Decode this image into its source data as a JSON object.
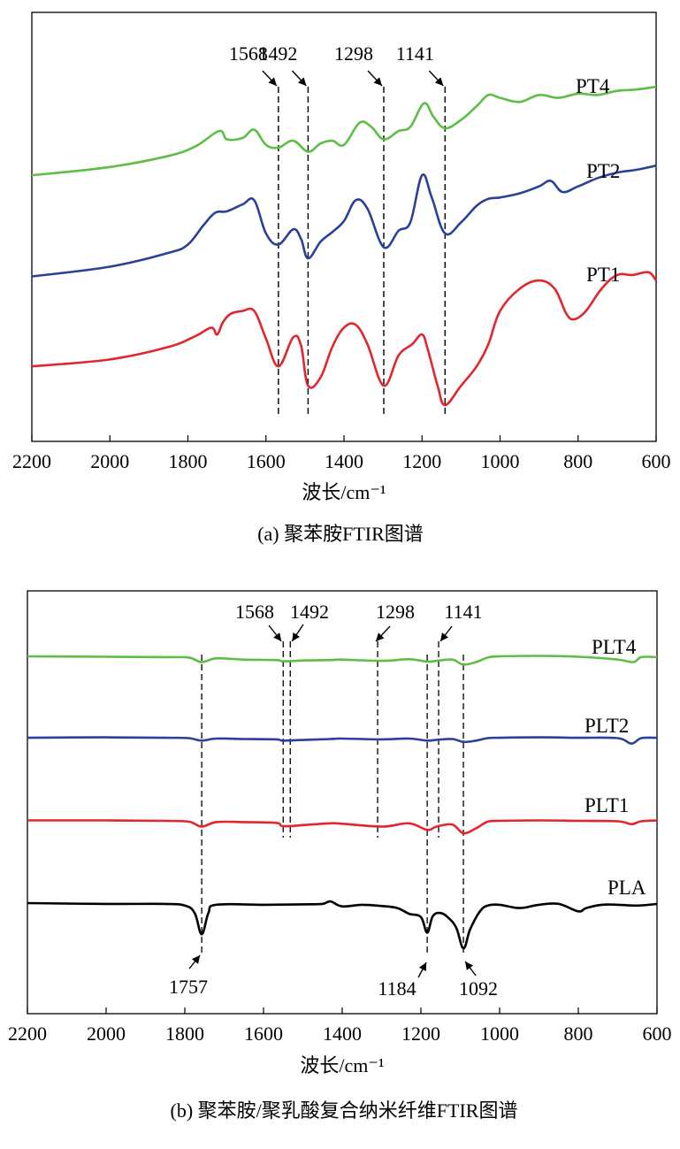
{
  "chart_data": [
    {
      "type": "line",
      "caption": "(a) 聚苯胺FTIR图谱",
      "xlabel": "波长/cm⁻¹",
      "ylabel": "",
      "xlim": [
        2200,
        600
      ],
      "x_reversed": true,
      "y_ticks": false,
      "x_ticks": [
        2200,
        2000,
        1800,
        1600,
        1400,
        1200,
        1000,
        800,
        600
      ],
      "peak_markers": [
        1568,
        1492,
        1298,
        1141
      ],
      "series": [
        {
          "name": "PT4",
          "color": "#5cbf45",
          "points": [
            [
              2200,
              0.83
            ],
            [
              2000,
              0.86
            ],
            [
              1850,
              0.9
            ],
            [
              1780,
              0.935
            ],
            [
              1720,
              0.99
            ],
            [
              1700,
              0.96
            ],
            [
              1660,
              0.965
            ],
            [
              1630,
              0.995
            ],
            [
              1600,
              0.94
            ],
            [
              1568,
              0.93
            ],
            [
              1530,
              0.955
            ],
            [
              1492,
              0.915
            ],
            [
              1460,
              0.945
            ],
            [
              1430,
              0.955
            ],
            [
              1400,
              0.94
            ],
            [
              1360,
              1.02
            ],
            [
              1330,
              1.005
            ],
            [
              1298,
              0.96
            ],
            [
              1260,
              0.99
            ],
            [
              1230,
              1.005
            ],
            [
              1195,
              1.09
            ],
            [
              1170,
              1.04
            ],
            [
              1141,
              1.0
            ],
            [
              1100,
              1.03
            ],
            [
              1060,
              1.08
            ],
            [
              1030,
              1.12
            ],
            [
              1000,
              1.11
            ],
            [
              950,
              1.095
            ],
            [
              900,
              1.12
            ],
            [
              850,
              1.11
            ],
            [
              800,
              1.125
            ],
            [
              750,
              1.12
            ],
            [
              700,
              1.135
            ],
            [
              650,
              1.14
            ],
            [
              600,
              1.15
            ]
          ]
        },
        {
          "name": "PT2",
          "color": "#2b409a",
          "points": [
            [
              2200,
              0.465
            ],
            [
              2000,
              0.5
            ],
            [
              1850,
              0.55
            ],
            [
              1800,
              0.58
            ],
            [
              1760,
              0.65
            ],
            [
              1730,
              0.695
            ],
            [
              1700,
              0.7
            ],
            [
              1660,
              0.725
            ],
            [
              1630,
              0.74
            ],
            [
              1600,
              0.62
            ],
            [
              1568,
              0.58
            ],
            [
              1530,
              0.635
            ],
            [
              1510,
              0.6
            ],
            [
              1492,
              0.53
            ],
            [
              1460,
              0.59
            ],
            [
              1430,
              0.625
            ],
            [
              1400,
              0.665
            ],
            [
              1370,
              0.74
            ],
            [
              1340,
              0.71
            ],
            [
              1298,
              0.57
            ],
            [
              1260,
              0.63
            ],
            [
              1230,
              0.66
            ],
            [
              1200,
              0.83
            ],
            [
              1175,
              0.75
            ],
            [
              1141,
              0.62
            ],
            [
              1100,
              0.66
            ],
            [
              1060,
              0.72
            ],
            [
              1030,
              0.745
            ],
            [
              1000,
              0.75
            ],
            [
              950,
              0.765
            ],
            [
              900,
              0.79
            ],
            [
              870,
              0.81
            ],
            [
              840,
              0.77
            ],
            [
              800,
              0.79
            ],
            [
              750,
              0.82
            ],
            [
              700,
              0.84
            ],
            [
              650,
              0.85
            ],
            [
              600,
              0.865
            ]
          ]
        },
        {
          "name": "PT1",
          "color": "#e1262c",
          "points": [
            [
              2200,
              0.14
            ],
            [
              2000,
              0.165
            ],
            [
              1850,
              0.21
            ],
            [
              1780,
              0.25
            ],
            [
              1740,
              0.28
            ],
            [
              1725,
              0.255
            ],
            [
              1710,
              0.3
            ],
            [
              1690,
              0.33
            ],
            [
              1660,
              0.34
            ],
            [
              1630,
              0.34
            ],
            [
              1600,
              0.24
            ],
            [
              1568,
              0.14
            ],
            [
              1530,
              0.245
            ],
            [
              1510,
              0.215
            ],
            [
              1492,
              0.07
            ],
            [
              1460,
              0.1
            ],
            [
              1430,
              0.21
            ],
            [
              1400,
              0.28
            ],
            [
              1370,
              0.29
            ],
            [
              1340,
              0.22
            ],
            [
              1298,
              0.07
            ],
            [
              1260,
              0.18
            ],
            [
              1225,
              0.22
            ],
            [
              1200,
              0.255
            ],
            [
              1185,
              0.2
            ],
            [
              1160,
              0.07
            ],
            [
              1141,
              0.0
            ],
            [
              1100,
              0.07
            ],
            [
              1060,
              0.14
            ],
            [
              1030,
              0.22
            ],
            [
              1000,
              0.34
            ],
            [
              950,
              0.42
            ],
            [
              900,
              0.45
            ],
            [
              860,
              0.42
            ],
            [
              830,
              0.33
            ],
            [
              810,
              0.31
            ],
            [
              780,
              0.34
            ],
            [
              740,
              0.42
            ],
            [
              700,
              0.47
            ],
            [
              660,
              0.47
            ],
            [
              620,
              0.48
            ],
            [
              600,
              0.45
            ]
          ]
        }
      ]
    },
    {
      "type": "line",
      "caption": "(b) 聚苯胺/聚乳酸复合纳米纤维FTIR图谱",
      "xlabel": "波长/cm⁻¹",
      "ylabel": "",
      "xlim": [
        2200,
        600
      ],
      "x_reversed": true,
      "y_ticks": false,
      "x_ticks": [
        2200,
        2000,
        1800,
        1600,
        1400,
        1200,
        1000,
        800,
        600
      ],
      "peak_markers_top": [
        1568,
        1492,
        1298,
        1141
      ],
      "peak_markers_bottom": [
        1757,
        1184,
        1092
      ],
      "series": [
        {
          "name": "PLT4",
          "color": "#5cbf45",
          "points": [
            [
              2200,
              3.0
            ],
            [
              2000,
              2.995
            ],
            [
              1850,
              2.99
            ],
            [
              1790,
              2.985
            ],
            [
              1757,
              2.93
            ],
            [
              1720,
              2.975
            ],
            [
              1650,
              2.96
            ],
            [
              1568,
              2.955
            ],
            [
              1550,
              2.94
            ],
            [
              1492,
              2.95
            ],
            [
              1430,
              2.955
            ],
            [
              1400,
              2.96
            ],
            [
              1298,
              2.945
            ],
            [
              1230,
              2.965
            ],
            [
              1184,
              2.935
            ],
            [
              1160,
              2.945
            ],
            [
              1120,
              2.96
            ],
            [
              1092,
              2.9
            ],
            [
              1060,
              2.93
            ],
            [
              1030,
              2.985
            ],
            [
              1000,
              3.0
            ],
            [
              900,
              3.005
            ],
            [
              800,
              2.995
            ],
            [
              700,
              2.96
            ],
            [
              660,
              2.93
            ],
            [
              640,
              2.99
            ],
            [
              600,
              2.99
            ]
          ]
        },
        {
          "name": "PLT2",
          "color": "#2b409a",
          "points": [
            [
              2200,
              2.01
            ],
            [
              2000,
              2.015
            ],
            [
              1850,
              2.01
            ],
            [
              1790,
              2.005
            ],
            [
              1757,
              1.975
            ],
            [
              1720,
              2.0
            ],
            [
              1650,
              1.995
            ],
            [
              1568,
              1.99
            ],
            [
              1550,
              1.975
            ],
            [
              1492,
              1.985
            ],
            [
              1430,
              1.995
            ],
            [
              1400,
              2.0
            ],
            [
              1298,
              1.99
            ],
            [
              1230,
              2.0
            ],
            [
              1184,
              1.975
            ],
            [
              1160,
              1.985
            ],
            [
              1120,
              1.995
            ],
            [
              1092,
              1.96
            ],
            [
              1060,
              1.975
            ],
            [
              1030,
              2.005
            ],
            [
              1000,
              2.01
            ],
            [
              900,
              2.015
            ],
            [
              800,
              2.01
            ],
            [
              700,
              2.005
            ],
            [
              665,
              1.94
            ],
            [
              640,
              2.005
            ],
            [
              600,
              2.01
            ]
          ]
        },
        {
          "name": "PLT1",
          "color": "#e1262c",
          "points": [
            [
              2200,
              1.005
            ],
            [
              2000,
              1.005
            ],
            [
              1850,
              1.0
            ],
            [
              1790,
              0.99
            ],
            [
              1757,
              0.93
            ],
            [
              1720,
              0.985
            ],
            [
              1650,
              0.985
            ],
            [
              1568,
              0.975
            ],
            [
              1550,
              0.935
            ],
            [
              1492,
              0.95
            ],
            [
              1430,
              0.97
            ],
            [
              1400,
              0.965
            ],
            [
              1298,
              0.93
            ],
            [
              1230,
              0.97
            ],
            [
              1184,
              0.89
            ],
            [
              1160,
              0.93
            ],
            [
              1120,
              0.955
            ],
            [
              1092,
              0.85
            ],
            [
              1060,
              0.91
            ],
            [
              1030,
              0.99
            ],
            [
              1000,
              1.0
            ],
            [
              900,
              1.005
            ],
            [
              800,
              1.0
            ],
            [
              700,
              0.995
            ],
            [
              665,
              0.96
            ],
            [
              640,
              0.995
            ],
            [
              600,
              1.005
            ]
          ]
        },
        {
          "name": "PLA",
          "color": "#000000",
          "points": [
            [
              2200,
              0.0
            ],
            [
              2000,
              -0.01
            ],
            [
              1850,
              -0.01
            ],
            [
              1800,
              -0.03
            ],
            [
              1775,
              -0.12
            ],
            [
              1757,
              -0.38
            ],
            [
              1740,
              -0.12
            ],
            [
              1720,
              -0.02
            ],
            [
              1600,
              -0.02
            ],
            [
              1500,
              -0.015
            ],
            [
              1450,
              -0.01
            ],
            [
              1430,
              0.02
            ],
            [
              1400,
              -0.04
            ],
            [
              1350,
              -0.02
            ],
            [
              1300,
              -0.035
            ],
            [
              1260,
              -0.06
            ],
            [
              1230,
              -0.13
            ],
            [
              1200,
              -0.17
            ],
            [
              1184,
              -0.36
            ],
            [
              1170,
              -0.16
            ],
            [
              1150,
              -0.12
            ],
            [
              1130,
              -0.18
            ],
            [
              1110,
              -0.3
            ],
            [
              1092,
              -0.55
            ],
            [
              1075,
              -0.32
            ],
            [
              1050,
              -0.1
            ],
            [
              1030,
              -0.03
            ],
            [
              1000,
              -0.02
            ],
            [
              950,
              -0.06
            ],
            [
              900,
              -0.02
            ],
            [
              850,
              -0.01
            ],
            [
              800,
              -0.1
            ],
            [
              780,
              -0.06
            ],
            [
              740,
              -0.02
            ],
            [
              700,
              -0.02
            ],
            [
              650,
              -0.03
            ],
            [
              600,
              -0.01
            ]
          ]
        }
      ]
    }
  ]
}
